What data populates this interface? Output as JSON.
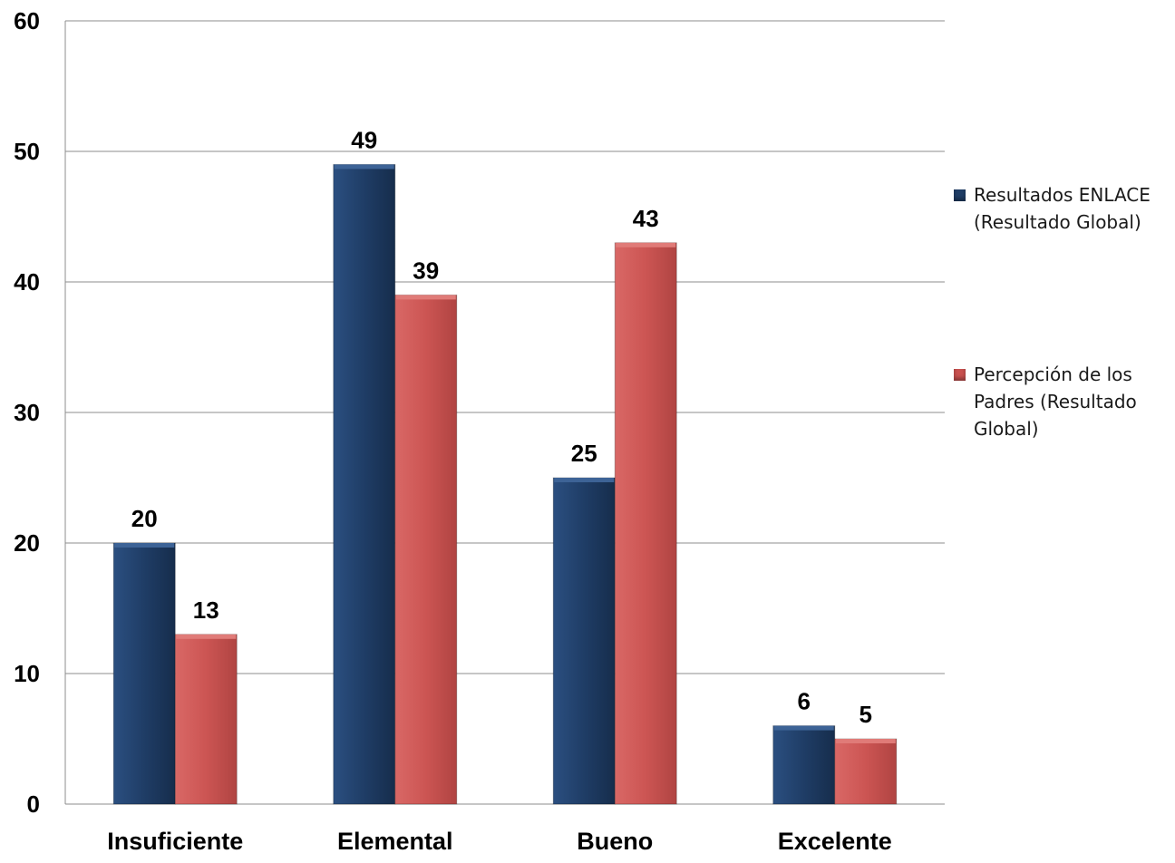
{
  "chart_data": {
    "type": "bar",
    "title": "",
    "xlabel": "",
    "ylabel": "",
    "categories": [
      "Insuficiente",
      "Elemental",
      "Bueno",
      "Excelente"
    ],
    "series": [
      {
        "name": "Resultados ENLACE (Resultado Global)",
        "color": "#1f3d66",
        "values": [
          20,
          49,
          25,
          6
        ]
      },
      {
        "name": "Percepción de los Padres (Resultado Global)",
        "color": "#c9514f",
        "values": [
          13,
          39,
          43,
          5
        ]
      }
    ],
    "ylim": [
      0,
      60
    ],
    "yticks": [
      "0",
      "10",
      "20",
      "30",
      "40",
      "50",
      "60"
    ],
    "grid": true,
    "legend_position": "right",
    "data_labels": true
  }
}
